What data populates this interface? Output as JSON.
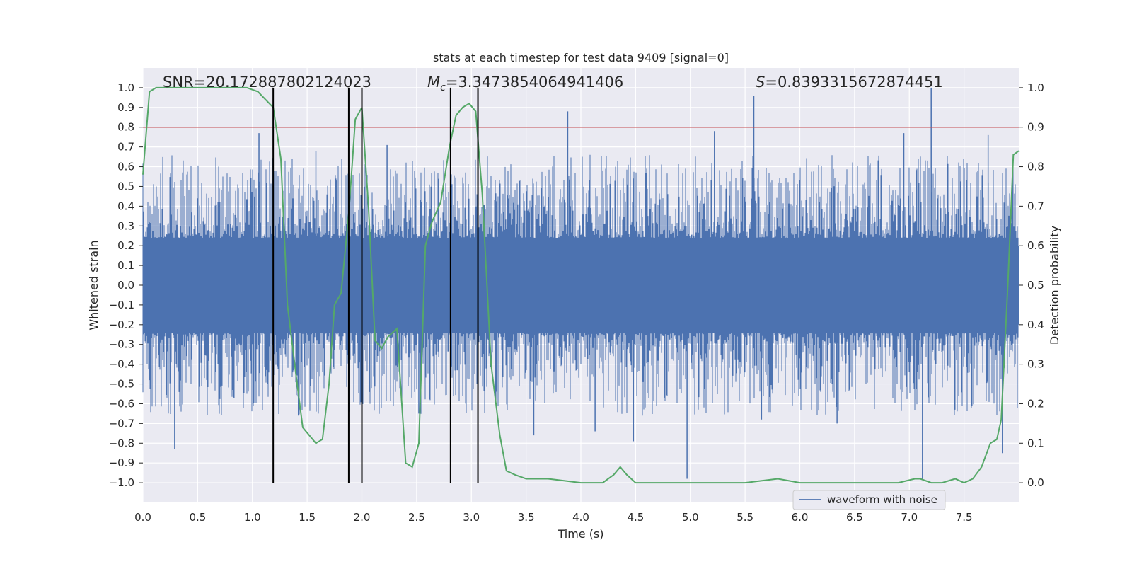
{
  "chart_data": {
    "type": "line",
    "title": "stats at each timestep for test data 9409 [signal=0]",
    "xlabel": "Time (s)",
    "ylabel": "Whitened strain",
    "y2label": "Detection probability",
    "xlim": [
      0.0,
      8.0
    ],
    "ylim": [
      -1.1,
      1.1
    ],
    "y2lim": [
      -0.05,
      1.05
    ],
    "x_ticks": [
      0.0,
      0.5,
      1.0,
      1.5,
      2.0,
      2.5,
      3.0,
      3.5,
      4.0,
      4.5,
      5.0,
      5.5,
      6.0,
      6.5,
      7.0,
      7.5
    ],
    "x_tick_labels": [
      "0.0",
      "0.5",
      "1.0",
      "1.5",
      "2.0",
      "2.5",
      "3.0",
      "3.5",
      "4.0",
      "4.5",
      "5.0",
      "5.5",
      "6.0",
      "6.5",
      "7.0",
      "7.5"
    ],
    "y_ticks": [
      1.0,
      0.9,
      0.8,
      0.7,
      0.6,
      0.5,
      0.4,
      0.3,
      0.2,
      0.1,
      0.0,
      -0.1,
      -0.2,
      -0.3,
      -0.4,
      -0.5,
      -0.6,
      -0.7,
      -0.8,
      -0.9,
      -1.0
    ],
    "y_tick_labels": [
      "1.0",
      "0.9",
      "0.8",
      "0.7",
      "0.6",
      "0.5",
      "0.4",
      "0.3",
      "0.2",
      "0.1",
      "0.0",
      "−0.1",
      "−0.2",
      "−0.3",
      "−0.4",
      "−0.5",
      "−0.6",
      "−0.7",
      "−0.8",
      "−0.9",
      "−1.0"
    ],
    "y2_ticks": [
      1.0,
      0.9,
      0.8,
      0.7,
      0.6,
      0.5,
      0.4,
      0.3,
      0.2,
      0.1,
      0.0
    ],
    "y2_tick_labels": [
      "1.0",
      "0.9",
      "0.8",
      "0.7",
      "0.6",
      "0.5",
      "0.4",
      "0.3",
      "0.2",
      "0.1",
      "0.0"
    ],
    "grid": true,
    "legend_position": "lower-right",
    "legend": [
      {
        "label": "waveform with noise",
        "color": "#4c72b0"
      }
    ],
    "annotations": {
      "snr": "SNR=20.172887802124023",
      "mc_symbol": "M",
      "mc_subscript": "c",
      "mc_value": "=3.3473854064941406",
      "s_symbol": "S",
      "s_value": "=0.8393315672874451"
    },
    "threshold": {
      "value": 0.8,
      "color": "#c44e52"
    },
    "event_times": [
      1.19,
      1.88,
      2.0,
      2.81,
      3.06
    ],
    "waveform": {
      "name": "waveform with noise",
      "color": "#4c72b0",
      "band_envelope": 0.2,
      "spike_peaks": [
        {
          "x": 0.29,
          "y": -0.83
        },
        {
          "x": 1.06,
          "y": 0.77
        },
        {
          "x": 1.42,
          "y": -0.66
        },
        {
          "x": 1.58,
          "y": 0.68
        },
        {
          "x": 2.23,
          "y": 0.71
        },
        {
          "x": 2.52,
          "y": -0.65
        },
        {
          "x": 3.88,
          "y": 0.88
        },
        {
          "x": 3.57,
          "y": -0.76
        },
        {
          "x": 4.13,
          "y": -0.74
        },
        {
          "x": 4.48,
          "y": -0.79
        },
        {
          "x": 4.97,
          "y": -0.98
        },
        {
          "x": 5.22,
          "y": 0.78
        },
        {
          "x": 5.58,
          "y": 0.96
        },
        {
          "x": 5.65,
          "y": -0.68
        },
        {
          "x": 6.34,
          "y": -0.7
        },
        {
          "x": 6.95,
          "y": 0.77
        },
        {
          "x": 7.12,
          "y": -0.98
        },
        {
          "x": 7.2,
          "y": 1.0
        },
        {
          "x": 7.72,
          "y": 0.76
        },
        {
          "x": 7.85,
          "y": -0.85
        }
      ]
    },
    "detection_probability": {
      "color": "#55a868",
      "x": [
        0.0,
        0.06,
        0.12,
        0.2,
        0.4,
        0.6,
        0.8,
        0.95,
        1.05,
        1.12,
        1.19,
        1.26,
        1.32,
        1.4,
        1.46,
        1.52,
        1.58,
        1.64,
        1.7,
        1.75,
        1.81,
        1.88,
        1.94,
        2.0,
        2.06,
        2.12,
        2.18,
        2.24,
        2.32,
        2.4,
        2.46,
        2.52,
        2.58,
        2.64,
        2.72,
        2.8,
        2.86,
        2.92,
        2.98,
        3.04,
        3.1,
        3.18,
        3.26,
        3.32,
        3.4,
        3.5,
        3.7,
        4.0,
        4.2,
        4.3,
        4.36,
        4.42,
        4.5,
        4.7,
        4.95,
        5.2,
        5.5,
        5.8,
        6.0,
        6.3,
        6.6,
        6.9,
        7.05,
        7.1,
        7.2,
        7.3,
        7.42,
        7.5,
        7.58,
        7.66,
        7.74,
        7.8,
        7.84,
        7.9,
        7.95,
        8.0
      ],
      "y": [
        0.78,
        0.99,
        1.0,
        1.0,
        1.0,
        1.0,
        1.0,
        1.0,
        0.99,
        0.97,
        0.95,
        0.82,
        0.45,
        0.27,
        0.14,
        0.12,
        0.1,
        0.11,
        0.25,
        0.45,
        0.48,
        0.68,
        0.92,
        0.95,
        0.7,
        0.36,
        0.34,
        0.37,
        0.39,
        0.05,
        0.04,
        0.1,
        0.6,
        0.66,
        0.71,
        0.85,
        0.93,
        0.95,
        0.96,
        0.94,
        0.73,
        0.3,
        0.12,
        0.03,
        0.02,
        0.01,
        0.01,
        0.0,
        0.0,
        0.02,
        0.04,
        0.02,
        0.0,
        0.0,
        0.0,
        0.0,
        0.0,
        0.01,
        0.0,
        0.0,
        0.0,
        0.0,
        0.01,
        0.01,
        0.0,
        0.0,
        0.01,
        0.0,
        0.01,
        0.04,
        0.1,
        0.11,
        0.16,
        0.5,
        0.83,
        0.84
      ]
    }
  }
}
